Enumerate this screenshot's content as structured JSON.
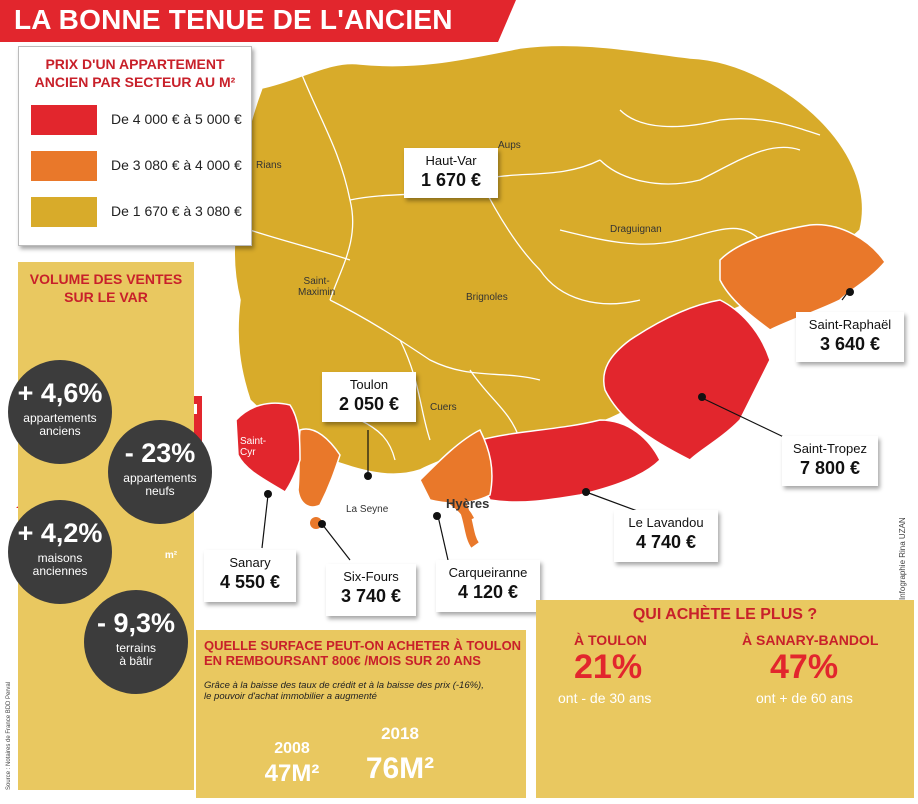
{
  "title": "LA BONNE TENUE DE L'ANCIEN",
  "colors": {
    "red": "#e2262d",
    "orange": "#e9782a",
    "yellow": "#d8ab2a",
    "panel": "#e9c860",
    "dark": "#3c3c3c"
  },
  "legend": {
    "title_line1": "PRIX D'UN APPARTEMENT",
    "title_line2": "ANCIEN PAR SECTEUR AU M²",
    "items": [
      {
        "label": "De 4 000 € à 5 000 €",
        "color": "#e2262d"
      },
      {
        "label": "De 3 080 € à 4 000 €",
        "color": "#e9782a"
      },
      {
        "label": "De 1 670 € à 3 080 €",
        "color": "#d8ab2a"
      }
    ]
  },
  "volume": {
    "title_line1": "VOLUME DES VENTES",
    "title_line2": "SUR LE VAR",
    "stats": [
      {
        "value": "+ 4,6%",
        "label_line1": "appartements",
        "label_line2": "anciens",
        "icon": "apartment-building-icon"
      },
      {
        "value": "- 23%",
        "label_line1": "appartements",
        "label_line2": "neufs",
        "icon": "new-building-icon"
      },
      {
        "value": "+ 4,2%",
        "label_line1": "maisons",
        "label_line2": "anciennes",
        "icon": "house-icon"
      },
      {
        "value": "- 9,3%",
        "label_line1": "terrains",
        "label_line2": "à bâtir",
        "icon": "land-plan-icon"
      }
    ],
    "plan_badge": "m²"
  },
  "price_labels": [
    {
      "name": "Haut-Var",
      "price": "1 670 €"
    },
    {
      "name": "Saint-Raphaël",
      "price": "3 640 €"
    },
    {
      "name": "Toulon",
      "price": "2 050 €"
    },
    {
      "name": "Saint-Tropez",
      "price": "7 800 €"
    },
    {
      "name": "Le Lavandou",
      "price": "4 740 €"
    },
    {
      "name": "Sanary",
      "price": "4 550 €"
    },
    {
      "name": "Six-Fours",
      "price": "3 740 €"
    },
    {
      "name": "Carqueiranne",
      "price": "4 120 €"
    }
  ],
  "towns": {
    "rians": "Rians",
    "aups": "Aups",
    "draguignan": "Draguignan",
    "saint_maximin_1": "Saint-",
    "saint_maximin_2": "Maximin",
    "brignoles": "Brignoles",
    "cuers": "Cuers",
    "saint_cyr_1": "Saint-",
    "saint_cyr_2": "Cyr",
    "la_seyne": "La Seyne",
    "hyeres": "Hyères"
  },
  "surface": {
    "title_line1": "QUELLE SURFACE PEUT-ON ACHETER À TOULON",
    "title_line2": "EN REMBOURSANT 800€ /MOIS SUR 20 ANS",
    "subtitle_line1": "Grâce à la baisse des taux de crédit et à la baisse des prix (-16%),",
    "subtitle_line2": "le pouvoir d'achat immobilier a augmenté",
    "y2008": "2008",
    "s2008": "47M²",
    "y2018": "2018",
    "s2018": "76M²"
  },
  "qui": {
    "title": "QUI ACHÈTE LE PLUS ?",
    "toulon_label": "À TOULON",
    "toulon_pct": "21%",
    "toulon_desc": "ont - de 30 ans",
    "toulon_fraction": 0.21,
    "sanary_label": "À SANARY-BANDOL",
    "sanary_pct": "47%",
    "sanary_desc": "ont + de 60 ans",
    "sanary_fraction": 0.47
  },
  "credit": "Infographie Rina UZAN",
  "source": "Source : Notaires de France BDD Perval"
}
